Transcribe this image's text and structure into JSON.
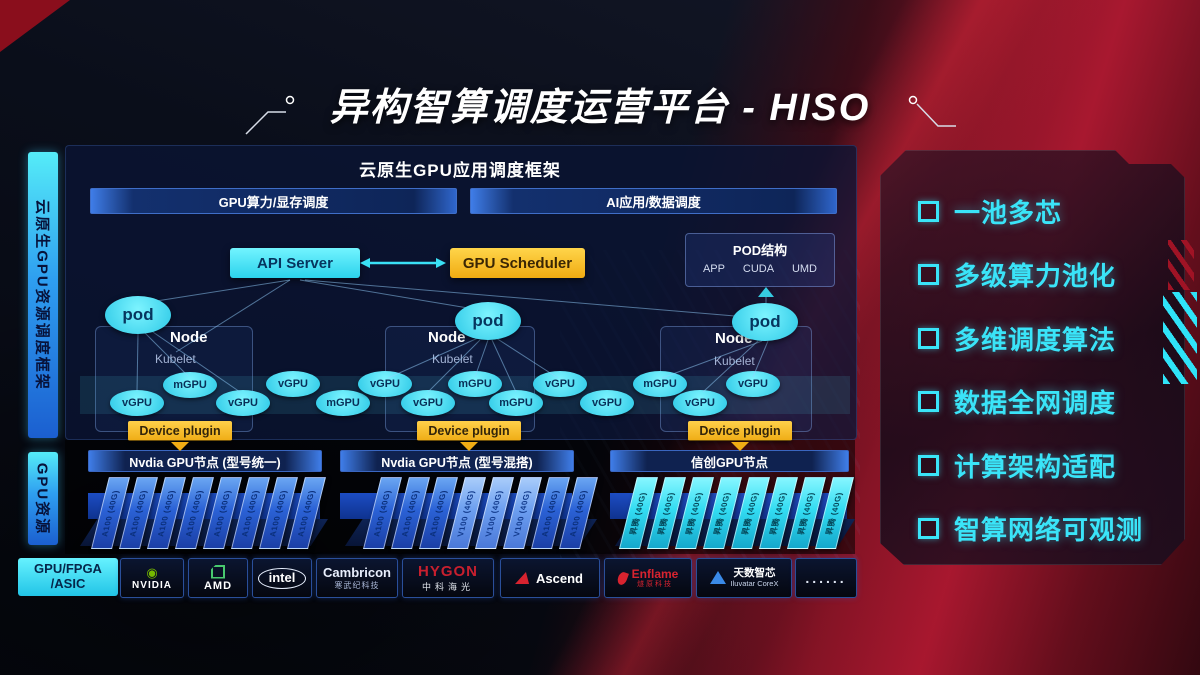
{
  "title": "异构智算调度运营平台 - HISO",
  "sidebar": {
    "framework_label": "云原生GPU资源调度框架",
    "resource_label": "GPU资源"
  },
  "framework": {
    "header": "云原生GPU应用调度框架",
    "bars": [
      "GPU算力/显存调度",
      "AI应用/数据调度"
    ],
    "api_server": "API Server",
    "gpu_scheduler": "GPU Scheduler",
    "pod_struct": {
      "title": "POD结构",
      "items": [
        "APP",
        "CUDA",
        "UMD"
      ]
    },
    "nodes": [
      {
        "pod": "pod",
        "name": "Node",
        "agent": "Kubelet",
        "plugin": "Device plugin"
      },
      {
        "pod": "pod",
        "name": "Node",
        "agent": "Kubelet",
        "plugin": "Device plugin"
      },
      {
        "pod": "pod",
        "name": "Node",
        "agent": "Kubelet",
        "plugin": "Device plugin"
      }
    ],
    "gpu_ellipses": [
      "vGPU",
      "mGPU",
      "vGPU",
      "vGPU",
      "mGPU",
      "vGPU",
      "vGPU",
      "mGPU",
      "mGPU",
      "vGPU",
      "vGPU",
      "mGPU",
      "vGPU",
      "vGPU"
    ]
  },
  "gpu_resource": {
    "groups": [
      {
        "header": "Nvdia GPU节点 (型号统一)",
        "cards": [
          {
            "label": "A100 (40G)",
            "variant": "blue"
          },
          {
            "label": "A100 (40G)",
            "variant": "blue"
          },
          {
            "label": "A100 (40G)",
            "variant": "blue"
          },
          {
            "label": "A100 (40G)",
            "variant": "blue"
          },
          {
            "label": "A100 (40G)",
            "variant": "blue"
          },
          {
            "label": "A100 (40G)",
            "variant": "blue"
          },
          {
            "label": "A100 (40G)",
            "variant": "blue"
          },
          {
            "label": "A100 (40G)",
            "variant": "blue"
          }
        ]
      },
      {
        "header": "Nvdia GPU节点 (型号混搭)",
        "cards": [
          {
            "label": "A100 (40G)",
            "variant": "blue"
          },
          {
            "label": "A100 (40G)",
            "variant": "blue"
          },
          {
            "label": "A100 (40G)",
            "variant": "blue"
          },
          {
            "label": "V100 (40G)",
            "variant": "light"
          },
          {
            "label": "V100 (40G)",
            "variant": "light"
          },
          {
            "label": "V100 (40G)",
            "variant": "light"
          },
          {
            "label": "A100 (40G)",
            "variant": "blue"
          },
          {
            "label": "A100 (40G)",
            "variant": "blue"
          }
        ]
      },
      {
        "header": "信创GPU节点",
        "cards": [
          {
            "label": "昇腾 (40G)",
            "variant": "cyan"
          },
          {
            "label": "昇腾 (40G)",
            "variant": "cyan"
          },
          {
            "label": "昇腾 (40G)",
            "variant": "cyan"
          },
          {
            "label": "昇腾 (40G)",
            "variant": "cyan"
          },
          {
            "label": "昇腾 (40G)",
            "variant": "cyan"
          },
          {
            "label": "昇腾 (40G)",
            "variant": "cyan"
          },
          {
            "label": "昇腾 (40G)",
            "variant": "cyan"
          },
          {
            "label": "昇腾 (40G)",
            "variant": "cyan"
          }
        ]
      }
    ]
  },
  "vendors": {
    "label_line1": "GPU/FPGA",
    "label_line2": "/ASIC",
    "items": [
      {
        "type": "nvidia",
        "line1": "NVIDIA"
      },
      {
        "type": "amd",
        "line1": "AMD"
      },
      {
        "type": "intel",
        "line1": "intel"
      },
      {
        "type": "cambricon",
        "line1": "Cambricon",
        "line2": "寒武纪科技"
      },
      {
        "type": "hygon",
        "line1": "HYGON",
        "line2": "中科海光"
      },
      {
        "type": "ascend",
        "line1": "Ascend"
      },
      {
        "type": "enflame",
        "line1": "Enflame",
        "line2": "燧原科技"
      },
      {
        "type": "iluvatar",
        "line1": "天数智芯",
        "line2": "Iluvatar CoreX"
      },
      {
        "type": "more",
        "line1": "......"
      }
    ]
  },
  "features": [
    "一池多芯",
    "多级算力池化",
    "多维调度算法",
    "数据全网调度",
    "计算架构适配",
    "智算网络可观测"
  ],
  "colors": {
    "accent_cyan": "#3ae4f8",
    "accent_yellow": "#f6b81e",
    "accent_blue": "#2b62d6",
    "accent_red": "#b01830"
  }
}
